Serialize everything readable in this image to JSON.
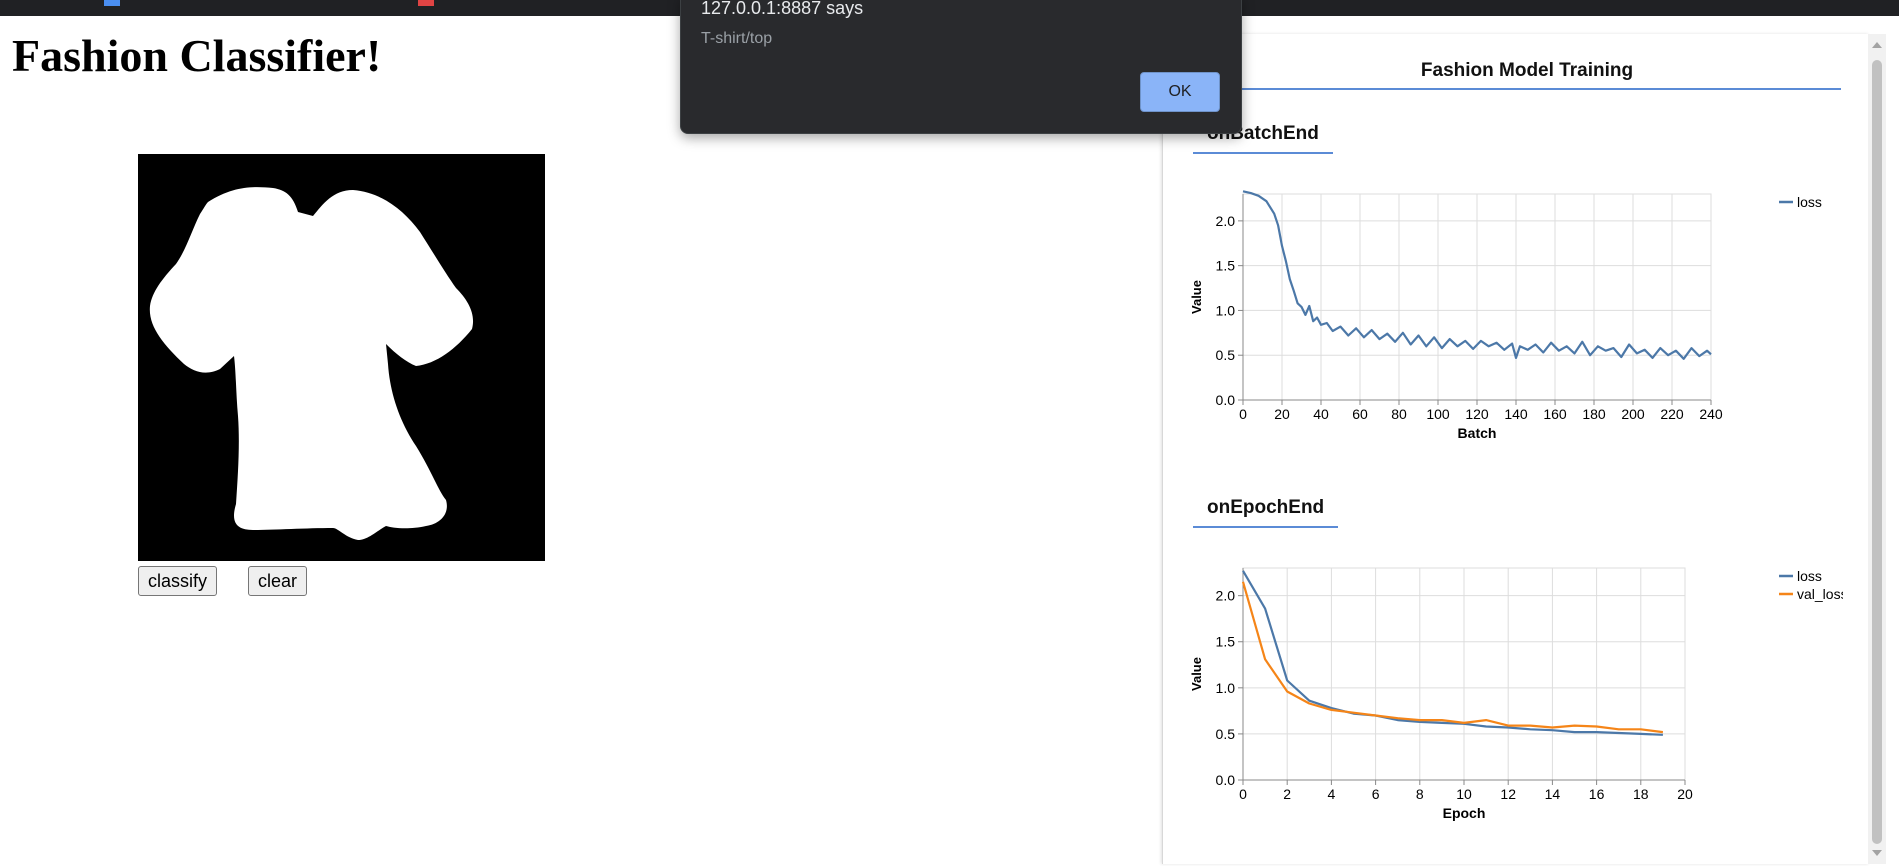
{
  "page": {
    "title": "Fashion Classifier!"
  },
  "colors": {
    "accent": "#5b8bd6",
    "loss": "#4c78a8",
    "val_loss": "#f58518",
    "dialog_bg": "#292a2d",
    "ok_button": "#8ab4f8"
  },
  "drawing": {
    "canvas_icon": "drawn-tshirt-icon"
  },
  "buttons": {
    "classify": "classify",
    "clear": "clear"
  },
  "dialog": {
    "title": "127.0.0.1:8887 says",
    "message": "T-shirt/top",
    "ok": "OK"
  },
  "visor": {
    "tab": "Fashion Model Training",
    "surfaces": [
      {
        "title": "onBatchEnd"
      },
      {
        "title": "onEpochEnd"
      }
    ]
  },
  "chart_data": [
    {
      "type": "line",
      "title": "onBatchEnd",
      "xlabel": "Batch",
      "ylabel": "Value",
      "xlim": [
        0,
        240
      ],
      "ylim": [
        0,
        2.3
      ],
      "xticks": [
        "0",
        "20",
        "40",
        "60",
        "80",
        "100",
        "120",
        "140",
        "160",
        "180",
        "200",
        "220",
        "240"
      ],
      "yticks": [
        "0.0",
        "0.5",
        "1.0",
        "1.5",
        "2.0"
      ],
      "grid": true,
      "legend": "top-right",
      "series": [
        {
          "name": "loss",
          "x": [
            0,
            4,
            8,
            12,
            16,
            18,
            20,
            22,
            24,
            26,
            28,
            30,
            32,
            34,
            36,
            38,
            40,
            43,
            46,
            50,
            54,
            58,
            62,
            66,
            70,
            74,
            78,
            82,
            86,
            90,
            94,
            98,
            102,
            106,
            110,
            114,
            118,
            122,
            126,
            130,
            134,
            138,
            140,
            142,
            146,
            150,
            154,
            158,
            162,
            166,
            170,
            174,
            178,
            182,
            186,
            190,
            194,
            198,
            202,
            206,
            210,
            214,
            218,
            222,
            226,
            230,
            234,
            238,
            240
          ],
          "values": [
            2.33,
            2.31,
            2.28,
            2.22,
            2.08,
            1.95,
            1.72,
            1.55,
            1.35,
            1.22,
            1.08,
            1.04,
            0.95,
            1.05,
            0.88,
            0.92,
            0.84,
            0.86,
            0.77,
            0.82,
            0.72,
            0.8,
            0.7,
            0.78,
            0.68,
            0.74,
            0.65,
            0.75,
            0.62,
            0.72,
            0.6,
            0.7,
            0.58,
            0.68,
            0.6,
            0.66,
            0.57,
            0.66,
            0.6,
            0.64,
            0.56,
            0.63,
            0.47,
            0.6,
            0.56,
            0.62,
            0.53,
            0.64,
            0.55,
            0.6,
            0.52,
            0.65,
            0.5,
            0.6,
            0.55,
            0.58,
            0.48,
            0.62,
            0.52,
            0.56,
            0.47,
            0.58,
            0.5,
            0.55,
            0.46,
            0.58,
            0.49,
            0.55,
            0.51
          ]
        }
      ]
    },
    {
      "type": "line",
      "title": "onEpochEnd",
      "xlabel": "Epoch",
      "ylabel": "Value",
      "xlim": [
        0,
        20
      ],
      "ylim": [
        0,
        2.3
      ],
      "xticks": [
        "0",
        "2",
        "4",
        "6",
        "8",
        "10",
        "12",
        "14",
        "16",
        "18",
        "20"
      ],
      "yticks": [
        "0.0",
        "0.5",
        "1.0",
        "1.5",
        "2.0"
      ],
      "grid": true,
      "legend": "top-right",
      "series": [
        {
          "name": "loss",
          "x": [
            0,
            1,
            2,
            3,
            4,
            5,
            6,
            7,
            8,
            9,
            10,
            11,
            12,
            13,
            14,
            15,
            16,
            17,
            18,
            19
          ],
          "values": [
            2.27,
            1.86,
            1.08,
            0.86,
            0.78,
            0.72,
            0.7,
            0.65,
            0.63,
            0.62,
            0.61,
            0.58,
            0.57,
            0.55,
            0.54,
            0.52,
            0.52,
            0.51,
            0.5,
            0.49
          ]
        },
        {
          "name": "val_loss",
          "x": [
            0,
            1,
            2,
            3,
            4,
            5,
            6,
            7,
            8,
            9,
            10,
            11,
            12,
            13,
            14,
            15,
            16,
            17,
            18,
            19
          ],
          "values": [
            2.15,
            1.31,
            0.96,
            0.83,
            0.76,
            0.73,
            0.7,
            0.67,
            0.65,
            0.65,
            0.62,
            0.65,
            0.59,
            0.59,
            0.57,
            0.59,
            0.58,
            0.55,
            0.55,
            0.52
          ]
        }
      ]
    }
  ]
}
